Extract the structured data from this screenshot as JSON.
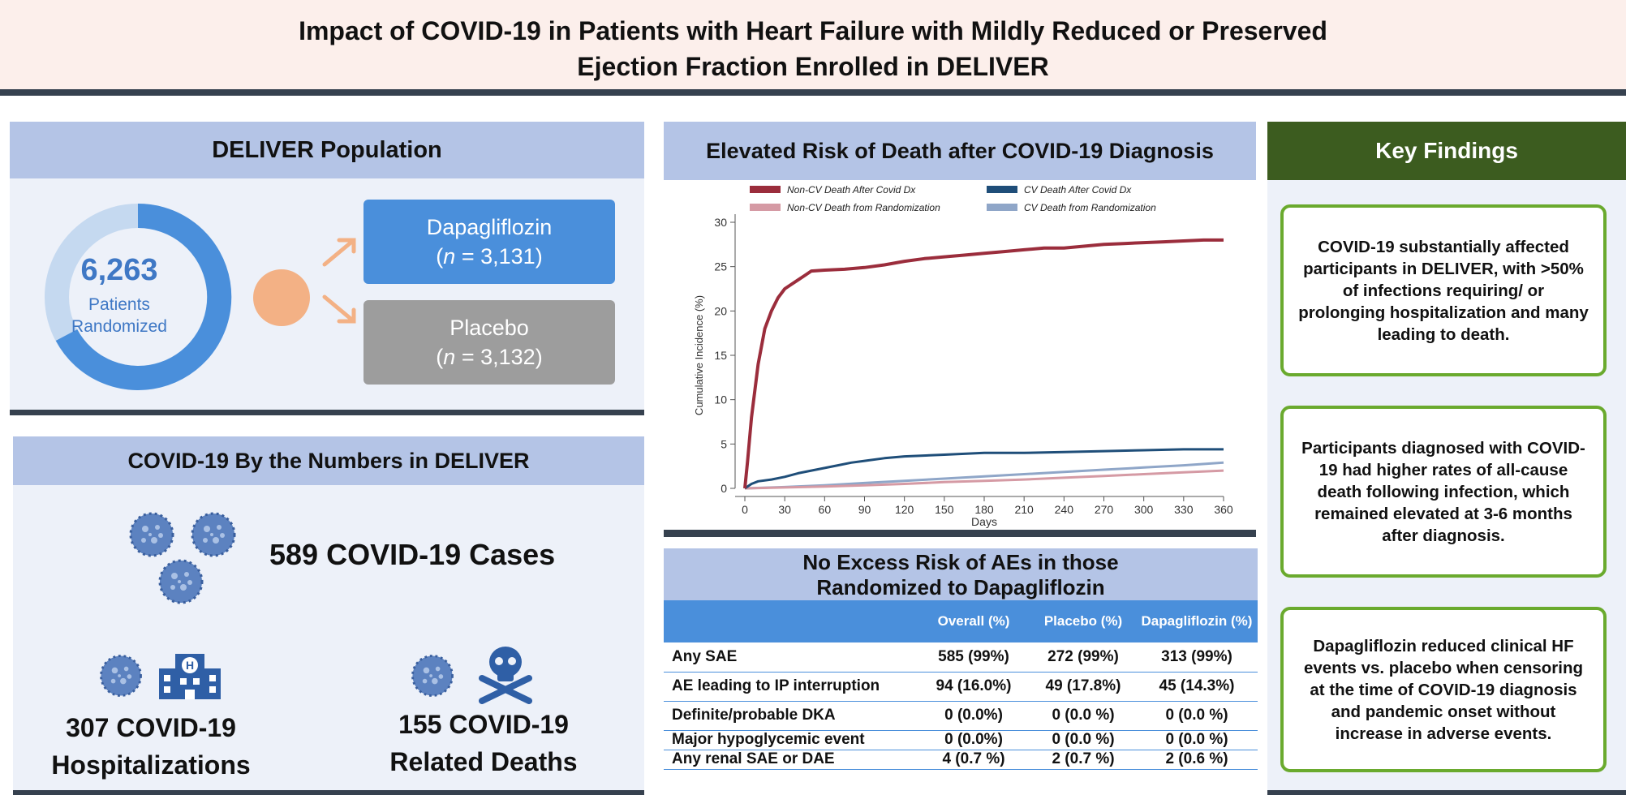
{
  "header": {
    "title_line1": "Impact of COVID-19 in Patients with Heart Failure with Mildly Reduced or Preserved",
    "title_line2": "Ejection Fraction Enrolled in DELIVER"
  },
  "population": {
    "title": "DELIVER Population",
    "total": "6,263",
    "total_label_1": "Patients",
    "total_label_2": "Randomized",
    "dapa_name": "Dapagliflozin",
    "dapa_n": "3,131",
    "placebo_name": "Placebo",
    "placebo_n": "3,132",
    "n_symbol": "n",
    "colors": {
      "dapa": "#4a8fdb",
      "placebo": "#9d9d9d",
      "ring": "#4a8fdb",
      "ring_light": "#c5d9f0",
      "dot": "#f3b185"
    }
  },
  "numbers": {
    "title": "COVID-19 By the Numbers in DELIVER",
    "cases": "589 COVID-19 Cases",
    "hosp_line1": "307 COVID-19",
    "hosp_line2": "Hospitalizations",
    "deaths_line1": "155 COVID-19",
    "deaths_line2": "Related Deaths",
    "icons": [
      "virus-icon",
      "hospital-icon",
      "skull-crossbones-icon"
    ]
  },
  "chart": {
    "title": "Elevated Risk of Death after COVID-19 Diagnosis",
    "chart_data": {
      "type": "line",
      "title": "",
      "xlabel": "Days",
      "ylabel": "Cumulative Incidence (%)",
      "xlim": [
        0,
        360
      ],
      "ylim": [
        0,
        30
      ],
      "xticks": [
        0,
        30,
        60,
        90,
        120,
        150,
        180,
        210,
        240,
        270,
        300,
        330,
        360
      ],
      "yticks": [
        0,
        5,
        10,
        15,
        20,
        25,
        30
      ],
      "legend_position": "top",
      "grid": false,
      "series": [
        {
          "name": "Non-CV Death After Covid Dx",
          "color": "#9b2d3c",
          "width": 4,
          "points": [
            [
              0,
              0
            ],
            [
              2,
              3
            ],
            [
              5,
              8
            ],
            [
              10,
              14
            ],
            [
              15,
              18
            ],
            [
              20,
              20
            ],
            [
              25,
              21.5
            ],
            [
              30,
              22.5
            ],
            [
              35,
              23
            ],
            [
              40,
              23.5
            ],
            [
              45,
              24
            ],
            [
              50,
              24.5
            ],
            [
              60,
              24.6
            ],
            [
              75,
              24.7
            ],
            [
              90,
              24.9
            ],
            [
              105,
              25.2
            ],
            [
              120,
              25.6
            ],
            [
              135,
              25.9
            ],
            [
              150,
              26.1
            ],
            [
              165,
              26.3
            ],
            [
              180,
              26.5
            ],
            [
              195,
              26.7
            ],
            [
              210,
              26.9
            ],
            [
              225,
              27.1
            ],
            [
              240,
              27.1
            ],
            [
              255,
              27.3
            ],
            [
              270,
              27.5
            ],
            [
              285,
              27.6
            ],
            [
              300,
              27.7
            ],
            [
              315,
              27.8
            ],
            [
              330,
              27.9
            ],
            [
              345,
              28
            ],
            [
              360,
              28
            ]
          ]
        },
        {
          "name": "CV Death After Covid Dx",
          "color": "#1f4e79",
          "width": 3,
          "points": [
            [
              0,
              0
            ],
            [
              5,
              0.5
            ],
            [
              10,
              0.8
            ],
            [
              20,
              1
            ],
            [
              30,
              1.3
            ],
            [
              40,
              1.7
            ],
            [
              50,
              2
            ],
            [
              60,
              2.3
            ],
            [
              70,
              2.6
            ],
            [
              80,
              2.9
            ],
            [
              90,
              3.1
            ],
            [
              105,
              3.4
            ],
            [
              120,
              3.6
            ],
            [
              150,
              3.8
            ],
            [
              180,
              4
            ],
            [
              210,
              4
            ],
            [
              240,
              4.1
            ],
            [
              270,
              4.2
            ],
            [
              300,
              4.3
            ],
            [
              330,
              4.4
            ],
            [
              360,
              4.4
            ]
          ]
        },
        {
          "name": "Non-CV Death from Randomization",
          "color": "#d59aa4",
          "width": 3,
          "points": [
            [
              0,
              0
            ],
            [
              30,
              0.1
            ],
            [
              60,
              0.2
            ],
            [
              90,
              0.35
            ],
            [
              120,
              0.5
            ],
            [
              150,
              0.7
            ],
            [
              180,
              0.85
            ],
            [
              210,
              1
            ],
            [
              240,
              1.2
            ],
            [
              270,
              1.4
            ],
            [
              300,
              1.6
            ],
            [
              330,
              1.8
            ],
            [
              360,
              2
            ]
          ]
        },
        {
          "name": "CV Death from Randomization",
          "color": "#8fa6c8",
          "width": 3,
          "points": [
            [
              0,
              0
            ],
            [
              30,
              0.15
            ],
            [
              60,
              0.35
            ],
            [
              90,
              0.6
            ],
            [
              120,
              0.85
            ],
            [
              150,
              1.1
            ],
            [
              180,
              1.35
            ],
            [
              210,
              1.6
            ],
            [
              240,
              1.85
            ],
            [
              270,
              2.1
            ],
            [
              300,
              2.35
            ],
            [
              330,
              2.6
            ],
            [
              360,
              2.9
            ]
          ]
        }
      ]
    }
  },
  "ae": {
    "title_line1": "No Excess Risk of AEs in those",
    "title_line2": "Randomized to Dapagliflozin",
    "headers": [
      "Overall (%)",
      "Placebo (%)",
      "Dapagliflozin (%)"
    ],
    "rows": [
      {
        "label": "Any SAE",
        "overall": "585 (99%)",
        "placebo": "272 (99%)",
        "dapa": "313 (99%)"
      },
      {
        "label": "AE leading to IP interruption",
        "overall": "94 (16.0%)",
        "placebo": "49 (17.8%)",
        "dapa": "45 (14.3%)"
      },
      {
        "label": "Definite/probable DKA",
        "overall": "0 (0.0%)",
        "placebo": "0 (0.0 %)",
        "dapa": "0 (0.0 %)"
      },
      {
        "label": "Major hypoglycemic event",
        "overall": "0 (0.0%)",
        "placebo": "0 (0.0 %)",
        "dapa": "0 (0.0 %)"
      },
      {
        "label": "Any renal SAE or DAE",
        "overall": "4 (0.7 %)",
        "placebo": "2 (0.7 %)",
        "dapa": "2 (0.6 %)"
      }
    ]
  },
  "key_findings": {
    "title": "Key Findings",
    "items": [
      "COVID-19 substantially affected participants in DELIVER, with >50% of infections requiring/ or prolonging hospitalization and many leading to death.",
      "Participants diagnosed with COVID-19 had higher rates of all-cause death following infection, which remained elevated at 3-6 months after diagnosis.",
      "Dapagliflozin reduced clinical HF events vs. placebo when censoring at the time of COVID-19 diagnosis and pandemic onset without increase in adverse events."
    ],
    "accent": "#6aaa2e"
  }
}
